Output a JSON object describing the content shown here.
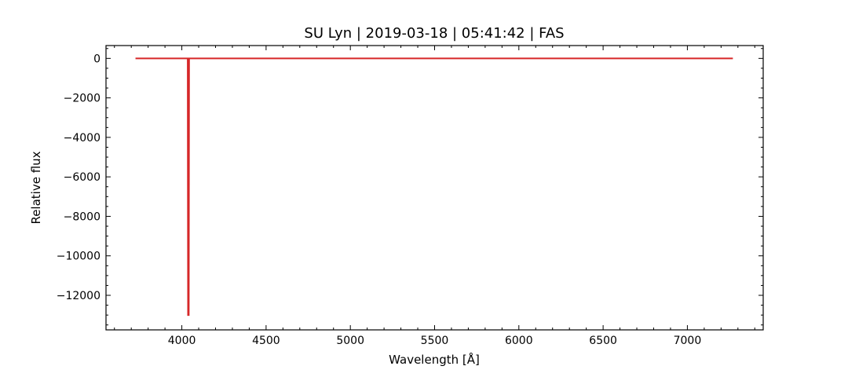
{
  "chart_data": {
    "type": "line",
    "title": "SU Lyn | 2019-03-18 | 05:41:42 | FAS",
    "xlabel": "Wavelength [Å]",
    "ylabel": "Relative flux",
    "xlim": [
      3550,
      7450
    ],
    "ylim": [
      -13750,
      650
    ],
    "x_ticks": [
      4000,
      4500,
      5000,
      5500,
      6000,
      6500,
      7000
    ],
    "y_ticks": [
      0,
      -2000,
      -4000,
      -6000,
      -8000,
      -10000,
      -12000
    ],
    "x_tick_labels": [
      "4000",
      "4500",
      "5000",
      "5500",
      "6000",
      "6500",
      "7000"
    ],
    "y_tick_labels": [
      "0",
      "−2000",
      "−4000",
      "−6000",
      "−8000",
      "−10000",
      "−12000"
    ],
    "grid": false,
    "series": [
      {
        "color": "#d62728",
        "x": [
          3725,
          4035,
          4037,
          4039,
          4041,
          4043,
          7270
        ],
        "y": [
          0,
          0,
          -13000,
          -13000,
          -13000,
          0,
          0
        ]
      }
    ]
  }
}
